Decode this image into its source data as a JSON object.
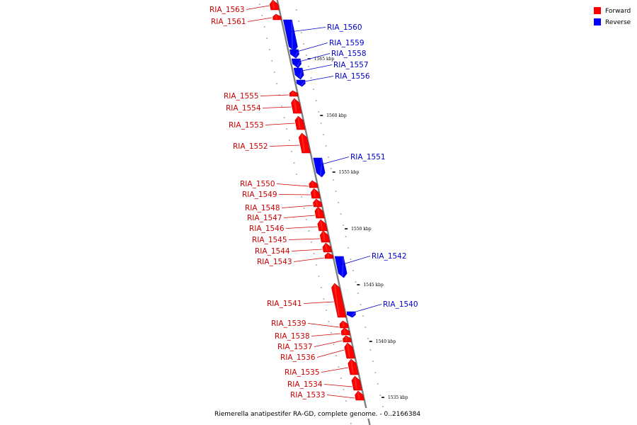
{
  "caption": "Riemerella anatipestifer RA-GD, complete genome. - 0..2166384",
  "legend": [
    {
      "label": "Forward",
      "color": "#ff0000"
    },
    {
      "label": "Reverse",
      "color": "#0000ff"
    }
  ],
  "colors": {
    "forward": "#ff0000",
    "reverse": "#0000ff",
    "forward_label": "#cc0000",
    "reverse_label": "#0000cc",
    "backbone": "#808080"
  },
  "ticks": [
    "1565 kbp",
    "1560 kbp",
    "1555 kbp",
    "1550 kbp",
    "1545 kbp",
    "1540 kbp",
    "1535 kbp"
  ],
  "genes": [
    {
      "label": "RIA_1563",
      "strand": "forward"
    },
    {
      "label": "RIA_1561",
      "strand": "forward"
    },
    {
      "label": "RIA_1560",
      "strand": "reverse"
    },
    {
      "label": "RIA_1559",
      "strand": "reverse"
    },
    {
      "label": "RIA_1558",
      "strand": "reverse"
    },
    {
      "label": "RIA_1557",
      "strand": "reverse"
    },
    {
      "label": "RIA_1556",
      "strand": "reverse"
    },
    {
      "label": "RIA_1555",
      "strand": "forward"
    },
    {
      "label": "RIA_1554",
      "strand": "forward"
    },
    {
      "label": "RIA_1553",
      "strand": "forward"
    },
    {
      "label": "RIA_1552",
      "strand": "forward"
    },
    {
      "label": "RIA_1551",
      "strand": "reverse"
    },
    {
      "label": "RIA_1550",
      "strand": "forward"
    },
    {
      "label": "RIA_1549",
      "strand": "forward"
    },
    {
      "label": "RIA_1548",
      "strand": "forward"
    },
    {
      "label": "RIA_1547",
      "strand": "forward"
    },
    {
      "label": "RIA_1546",
      "strand": "forward"
    },
    {
      "label": "RIA_1545",
      "strand": "forward"
    },
    {
      "label": "RIA_1544",
      "strand": "forward"
    },
    {
      "label": "RIA_1543",
      "strand": "forward"
    },
    {
      "label": "RIA_1542",
      "strand": "reverse"
    },
    {
      "label": "RIA_1541",
      "strand": "forward"
    },
    {
      "label": "RIA_1540",
      "strand": "reverse"
    },
    {
      "label": "RIA_1539",
      "strand": "forward"
    },
    {
      "label": "RIA_1538",
      "strand": "forward"
    },
    {
      "label": "RIA_1537",
      "strand": "forward"
    },
    {
      "label": "RIA_1536",
      "strand": "forward"
    },
    {
      "label": "RIA_1535",
      "strand": "forward"
    },
    {
      "label": "RIA_1534",
      "strand": "forward"
    },
    {
      "label": "RIA_1533",
      "strand": "forward"
    }
  ]
}
